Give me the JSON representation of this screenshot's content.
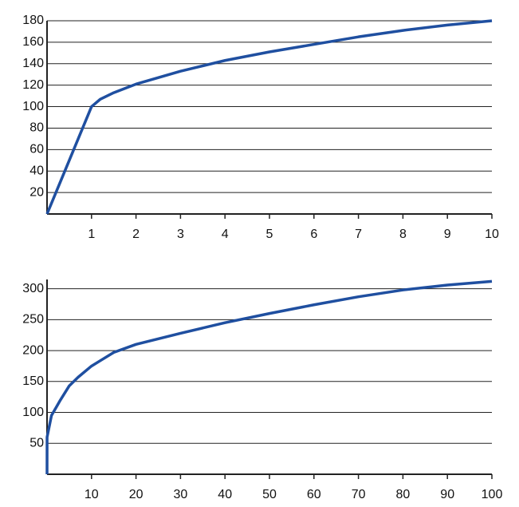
{
  "chart_data": [
    {
      "type": "line",
      "color": "#1f4fa0",
      "grid": true,
      "x": [
        0,
        0.5,
        1,
        1.2,
        1.5,
        2,
        3,
        4,
        5,
        6,
        7,
        8,
        9,
        10
      ],
      "values": [
        0,
        50,
        100,
        107,
        113,
        121,
        133,
        143,
        151,
        158,
        165,
        171,
        176,
        180
      ],
      "xlim": [
        0,
        10
      ],
      "ylim": [
        0,
        180
      ],
      "xticks": [
        1,
        2,
        3,
        4,
        5,
        6,
        7,
        8,
        9,
        10
      ],
      "yticks": [
        20,
        40,
        60,
        80,
        100,
        120,
        140,
        160,
        180
      ]
    },
    {
      "type": "line",
      "color": "#1f4fa0",
      "grid": true,
      "x": [
        0,
        0.01,
        1,
        3,
        5,
        7,
        10,
        15,
        20,
        30,
        40,
        50,
        60,
        70,
        80,
        90,
        100
      ],
      "values": [
        0,
        60,
        95,
        120,
        143,
        157,
        175,
        197,
        210,
        228,
        245,
        260,
        274,
        287,
        298,
        306,
        312
      ],
      "xlim": [
        0,
        100
      ],
      "ylim": [
        0,
        315
      ],
      "xticks": [
        10,
        20,
        30,
        40,
        50,
        60,
        70,
        80,
        90,
        100
      ],
      "yticks": [
        50,
        100,
        150,
        200,
        250,
        300
      ]
    }
  ]
}
